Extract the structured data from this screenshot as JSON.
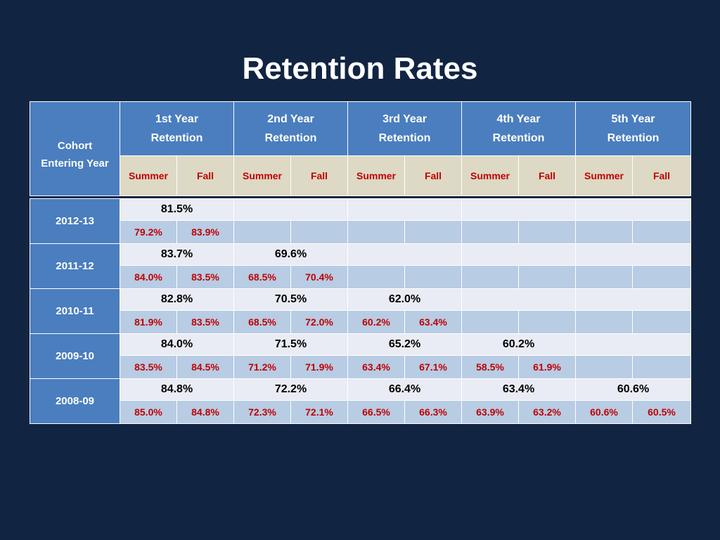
{
  "title": "Retention Rates",
  "header": {
    "cohort_line1": "Cohort",
    "cohort_line2": "Entering Year",
    "years": [
      {
        "line1": "1st Year",
        "line2": "Retention"
      },
      {
        "line1": "2nd Year",
        "line2": "Retention"
      },
      {
        "line1": "3rd Year",
        "line2": "Retention"
      },
      {
        "line1": "4th Year",
        "line2": "Retention"
      },
      {
        "line1": "5th Year",
        "line2": "Retention"
      }
    ],
    "summer_label": "Summer",
    "fall_label": "Fall"
  },
  "rows": [
    {
      "cohort": "2012-13",
      "totals": [
        "81.5%",
        "",
        "",
        "",
        ""
      ],
      "splits": [
        [
          "79.2%",
          "83.9%"
        ],
        [
          "",
          ""
        ],
        [
          "",
          ""
        ],
        [
          "",
          ""
        ],
        [
          "",
          ""
        ]
      ]
    },
    {
      "cohort": "2011-12",
      "totals": [
        "83.7%",
        "69.6%",
        "",
        "",
        ""
      ],
      "splits": [
        [
          "84.0%",
          "83.5%"
        ],
        [
          "68.5%",
          "70.4%"
        ],
        [
          "",
          ""
        ],
        [
          "",
          ""
        ],
        [
          "",
          ""
        ]
      ]
    },
    {
      "cohort": "2010-11",
      "totals": [
        "82.8%",
        "70.5%",
        "62.0%",
        "",
        ""
      ],
      "splits": [
        [
          "81.9%",
          "83.5%"
        ],
        [
          "68.5%",
          "72.0%"
        ],
        [
          "60.2%",
          "63.4%"
        ],
        [
          "",
          ""
        ],
        [
          "",
          ""
        ]
      ]
    },
    {
      "cohort": "2009-10",
      "totals": [
        "84.0%",
        "71.5%",
        "65.2%",
        "60.2%",
        ""
      ],
      "splits": [
        [
          "83.5%",
          "84.5%"
        ],
        [
          "71.2%",
          "71.9%"
        ],
        [
          "63.4%",
          "67.1%"
        ],
        [
          "58.5%",
          "61.9%"
        ],
        [
          "",
          ""
        ]
      ]
    },
    {
      "cohort": "2008-09",
      "totals": [
        "84.8%",
        "72.2%",
        "66.4%",
        "63.4%",
        "60.6%"
      ],
      "splits": [
        [
          "85.0%",
          "84.8%"
        ],
        [
          "72.3%",
          "72.1%"
        ],
        [
          "66.5%",
          "66.3%"
        ],
        [
          "63.9%",
          "63.2%"
        ],
        [
          "60.6%",
          "60.5%"
        ]
      ]
    }
  ]
}
